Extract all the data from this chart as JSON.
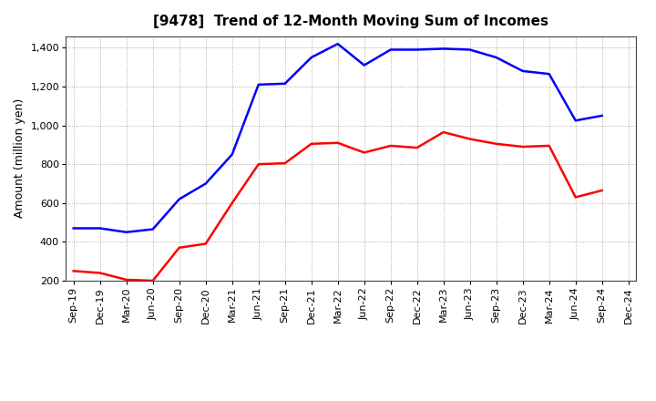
{
  "title": "[9478]  Trend of 12-Month Moving Sum of Incomes",
  "ylabel": "Amount (million yen)",
  "x_labels": [
    "Sep-19",
    "Dec-19",
    "Mar-20",
    "Jun-20",
    "Sep-20",
    "Dec-20",
    "Mar-21",
    "Jun-21",
    "Sep-21",
    "Dec-21",
    "Mar-22",
    "Jun-22",
    "Sep-22",
    "Dec-22",
    "Mar-23",
    "Jun-23",
    "Sep-23",
    "Dec-23",
    "Mar-24",
    "Jun-24",
    "Sep-24",
    "Dec-24"
  ],
  "ordinary_income": [
    470,
    470,
    450,
    465,
    620,
    700,
    850,
    1210,
    1215,
    1350,
    1420,
    1310,
    1390,
    1390,
    1395,
    1390,
    1350,
    1280,
    1265,
    1025,
    1050,
    null
  ],
  "net_income": [
    250,
    240,
    205,
    200,
    370,
    390,
    600,
    800,
    805,
    905,
    910,
    860,
    895,
    885,
    965,
    930,
    905,
    890,
    895,
    630,
    665,
    null
  ],
  "ordinary_color": "#0000ff",
  "net_color": "#ff0000",
  "ylim": [
    200,
    1460
  ],
  "yticks": [
    200,
    400,
    600,
    800,
    1000,
    1200,
    1400
  ],
  "bg_color": "#ffffff",
  "grid_color": "#999999",
  "title_fontsize": 11,
  "label_fontsize": 9,
  "tick_fontsize": 8,
  "legend_fontsize": 9
}
